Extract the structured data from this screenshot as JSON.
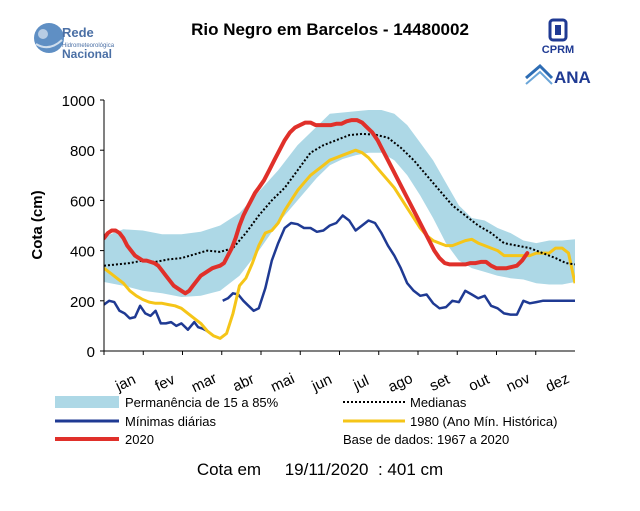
{
  "header": {
    "title": "Rio Negro em Barcelos - 14480002",
    "logo_left": {
      "line1": "Rede",
      "line2": "Hidrometeorológica",
      "line3": "Nacional"
    },
    "logo_cprm": "CPRM",
    "logo_ana": "ANA"
  },
  "footer": {
    "label": "Cota em",
    "date": "19/11/2020",
    "value": ": 401 cm"
  },
  "colors": {
    "band": "#add8e6",
    "minimas": "#1f3a93",
    "y1980": "#f5c518",
    "y2020": "#e0302a",
    "median": "#000000"
  },
  "chart_data": {
    "type": "line",
    "title": "Rio Negro em Barcelos - 14480002",
    "ylabel": "Cota (cm)",
    "xlabel": "",
    "ylim": [
      0,
      1000
    ],
    "xlim": [
      0,
      365
    ],
    "yticks": [
      "0",
      "200",
      "400",
      "600",
      "800",
      "1000"
    ],
    "month_labels": [
      "jan",
      "fev",
      "mar",
      "abr",
      "mai",
      "jun",
      "jul",
      "ago",
      "set",
      "out",
      "nov",
      "dez"
    ],
    "grid": false,
    "legend": [
      {
        "label": "Permanência de 15 a 85%",
        "key": "band"
      },
      {
        "label": "Medianas",
        "key": "median"
      },
      {
        "label": "Mínimas diárias",
        "key": "minimas"
      },
      {
        "label": "1980 (Ano Mín. Histórica)",
        "key": "y1980"
      },
      {
        "label": "2020",
        "key": "y2020"
      },
      {
        "label": "Base de dados: 1967 a 2020",
        "key": "none"
      }
    ],
    "band": {
      "name": "Permanência de 15 a 85%",
      "x": [
        0,
        15,
        30,
        45,
        60,
        75,
        90,
        105,
        120,
        135,
        150,
        165,
        175,
        185,
        195,
        205,
        215,
        225,
        235,
        245,
        255,
        265,
        275,
        285,
        295,
        305,
        315,
        325,
        335,
        345,
        355,
        365
      ],
      "upper": [
        455,
        485,
        480,
        465,
        465,
        475,
        500,
        550,
        635,
        720,
        820,
        895,
        945,
        950,
        955,
        960,
        960,
        945,
        900,
        830,
        760,
        670,
        580,
        530,
        520,
        490,
        470,
        440,
        430,
        440,
        440,
        445
      ],
      "lower": [
        275,
        260,
        240,
        230,
        215,
        220,
        240,
        300,
        400,
        510,
        600,
        690,
        740,
        765,
        780,
        790,
        790,
        760,
        700,
        620,
        530,
        430,
        360,
        330,
        315,
        300,
        290,
        285,
        270,
        265,
        265,
        275
      ]
    },
    "series": [
      {
        "name": "Medianas",
        "key": "median",
        "x": [
          0,
          10,
          20,
          30,
          40,
          50,
          60,
          70,
          80,
          90,
          100,
          110,
          120,
          130,
          140,
          150,
          160,
          170,
          180,
          190,
          200,
          210,
          220,
          230,
          240,
          250,
          260,
          270,
          280,
          290,
          300,
          310,
          320,
          330,
          340,
          350,
          358,
          365
        ],
        "y": [
          340,
          345,
          350,
          360,
          355,
          365,
          370,
          385,
          400,
          395,
          410,
          470,
          540,
          600,
          650,
          720,
          790,
          820,
          840,
          860,
          865,
          862,
          850,
          810,
          760,
          700,
          640,
          580,
          540,
          500,
          470,
          430,
          420,
          410,
          390,
          370,
          350,
          345
        ]
      },
      {
        "name": "Mínimas diárias",
        "key": "minimas",
        "segments": [
          {
            "x": [
              0,
              4,
              8,
              12,
              16,
              20,
              24,
              28,
              32,
              36,
              40,
              44,
              48,
              52,
              56,
              60,
              65,
              70,
              73,
              76,
              80
            ],
            "y": [
              185,
              200,
              195,
              160,
              150,
              130,
              135,
              180,
              150,
              140,
              160,
              110,
              110,
              115,
              100,
              110,
              85,
              115,
              95,
              90,
              80
            ]
          },
          {
            "x": [
              92,
              96,
              100,
              104,
              108,
              112,
              116,
              120,
              125,
              130,
              135,
              140,
              145,
              150,
              155,
              160,
              165,
              170,
              175,
              180,
              185,
              190,
              195,
              200,
              205,
              210,
              215,
              220,
              225,
              230,
              235,
              240,
              245,
              250,
              255,
              260,
              265,
              270,
              275,
              280,
              285,
              290,
              295,
              300,
              305,
              310,
              315,
              320,
              325,
              330,
              335,
              340,
              345,
              350,
              355,
              360,
              365
            ],
            "y": [
              200,
              210,
              230,
              225,
              200,
              180,
              160,
              170,
              250,
              360,
              430,
              490,
              510,
              505,
              490,
              490,
              475,
              480,
              500,
              510,
              540,
              520,
              480,
              500,
              520,
              510,
              470,
              420,
              380,
              330,
              270,
              240,
              220,
              225,
              190,
              170,
              175,
              200,
              195,
              240,
              225,
              210,
              220,
              180,
              170,
              150,
              145,
              145,
              200,
              190,
              195,
              200,
              200,
              200,
              200,
              200,
              200
            ]
          }
        ]
      },
      {
        "name": "1980 (Ano Mín. Histórica)",
        "key": "y1980",
        "x": [
          0,
          5,
          10,
          15,
          20,
          25,
          30,
          35,
          40,
          45,
          50,
          55,
          60,
          65,
          70,
          75,
          80,
          85,
          90,
          95,
          100,
          105,
          110,
          115,
          120,
          125,
          130,
          135,
          140,
          145,
          150,
          155,
          160,
          165,
          170,
          175,
          180,
          185,
          190,
          195,
          200,
          205,
          210,
          215,
          220,
          225,
          230,
          235,
          240,
          245,
          250,
          255,
          260,
          265,
          270,
          275,
          280,
          285,
          290,
          295,
          300,
          305,
          310,
          315,
          320,
          325,
          330,
          335,
          340,
          345,
          350,
          355,
          360,
          365
        ],
        "y": [
          330,
          310,
          290,
          270,
          240,
          220,
          205,
          195,
          190,
          190,
          185,
          180,
          170,
          150,
          130,
          110,
          80,
          60,
          50,
          70,
          150,
          260,
          290,
          350,
          420,
          470,
          480,
          510,
          560,
          600,
          640,
          670,
          700,
          720,
          740,
          760,
          770,
          780,
          790,
          800,
          790,
          770,
          740,
          710,
          680,
          650,
          610,
          570,
          530,
          490,
          460,
          440,
          430,
          420,
          420,
          430,
          440,
          445,
          430,
          420,
          410,
          400,
          380,
          380,
          380,
          380,
          380,
          390,
          390,
          390,
          410,
          410,
          390,
          270
        ]
      },
      {
        "name": "2020",
        "key": "y2020",
        "x": [
          0,
          3,
          6,
          9,
          12,
          15,
          18,
          21,
          24,
          27,
          30,
          33,
          36,
          39,
          42,
          45,
          48,
          51,
          54,
          57,
          60,
          63,
          66,
          69,
          72,
          75,
          78,
          81,
          84,
          87,
          90,
          93,
          96,
          99,
          102,
          105,
          108,
          111,
          114,
          117,
          120,
          124,
          128,
          132,
          136,
          140,
          144,
          148,
          152,
          156,
          160,
          164,
          168,
          172,
          176,
          180,
          184,
          188,
          192,
          196,
          200,
          204,
          208,
          212,
          216,
          220,
          224,
          228,
          232,
          236,
          240,
          244,
          248,
          252,
          256,
          260,
          264,
          268,
          272,
          276,
          280,
          284,
          288,
          292,
          296,
          300,
          304,
          308,
          312,
          316,
          320,
          324,
          328
        ],
        "y": [
          450,
          470,
          480,
          480,
          470,
          450,
          420,
          400,
          380,
          370,
          360,
          360,
          355,
          350,
          340,
          320,
          300,
          280,
          260,
          250,
          240,
          230,
          240,
          260,
          280,
          300,
          310,
          320,
          330,
          335,
          340,
          350,
          380,
          410,
          450,
          500,
          540,
          570,
          600,
          630,
          650,
          680,
          720,
          760,
          800,
          840,
          870,
          890,
          900,
          910,
          910,
          900,
          900,
          900,
          900,
          905,
          905,
          915,
          920,
          920,
          910,
          890,
          870,
          840,
          800,
          760,
          720,
          680,
          640,
          600,
          560,
          520,
          480,
          440,
          400,
          370,
          350,
          345,
          345,
          345,
          345,
          350,
          350,
          355,
          355,
          340,
          330,
          330,
          330,
          335,
          340,
          360,
          390
        ]
      }
    ]
  }
}
